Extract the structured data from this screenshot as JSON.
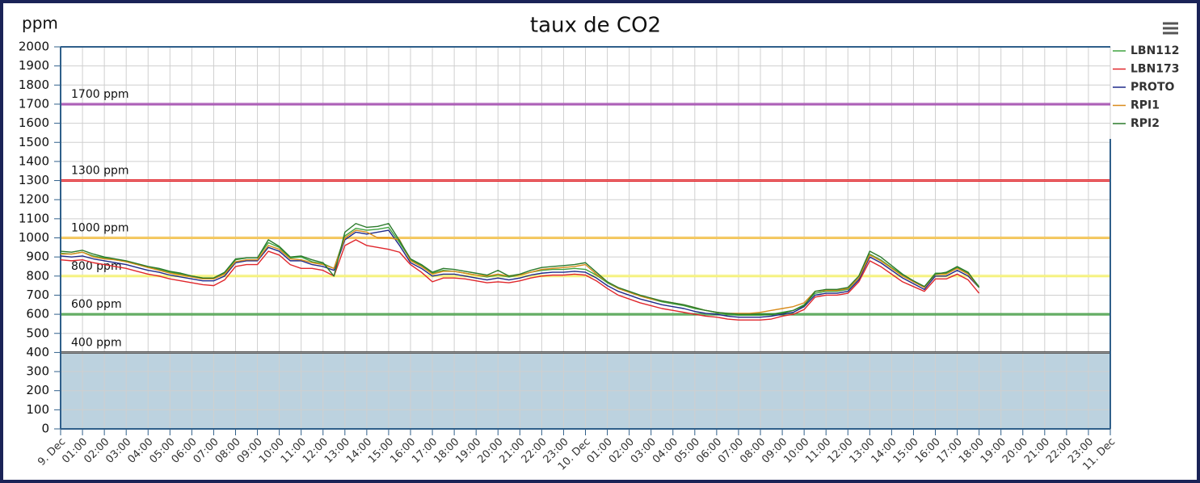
{
  "chart_data": {
    "type": "line",
    "title": "taux de CO2",
    "y_label": "ppm",
    "grid": true,
    "legend": "right",
    "xlim": [
      0,
      48
    ],
    "ylim": [
      0,
      2000
    ],
    "yticks": [
      0,
      100,
      200,
      300,
      400,
      500,
      600,
      700,
      800,
      900,
      1000,
      1100,
      1200,
      1300,
      1400,
      1500,
      1600,
      1700,
      1800,
      1900,
      2000
    ],
    "xticks": [
      {
        "value": 0,
        "label": "9. Dec"
      },
      {
        "value": 1,
        "label": "01:00"
      },
      {
        "value": 2,
        "label": "02:00"
      },
      {
        "value": 3,
        "label": "03:00"
      },
      {
        "value": 4,
        "label": "04:00"
      },
      {
        "value": 5,
        "label": "05:00"
      },
      {
        "value": 6,
        "label": "06:00"
      },
      {
        "value": 7,
        "label": "07:00"
      },
      {
        "value": 8,
        "label": "08:00"
      },
      {
        "value": 9,
        "label": "09:00"
      },
      {
        "value": 10,
        "label": "10:00"
      },
      {
        "value": 11,
        "label": "11:00"
      },
      {
        "value": 12,
        "label": "12:00"
      },
      {
        "value": 13,
        "label": "13:00"
      },
      {
        "value": 14,
        "label": "14:00"
      },
      {
        "value": 15,
        "label": "15:00"
      },
      {
        "value": 16,
        "label": "16:00"
      },
      {
        "value": 17,
        "label": "17:00"
      },
      {
        "value": 18,
        "label": "18:00"
      },
      {
        "value": 19,
        "label": "19:00"
      },
      {
        "value": 20,
        "label": "20:00"
      },
      {
        "value": 21,
        "label": "21:00"
      },
      {
        "value": 22,
        "label": "22:00"
      },
      {
        "value": 23,
        "label": "23:00"
      },
      {
        "value": 24,
        "label": "10. Dec"
      },
      {
        "value": 25,
        "label": "01:00"
      },
      {
        "value": 26,
        "label": "02:00"
      },
      {
        "value": 27,
        "label": "03:00"
      },
      {
        "value": 28,
        "label": "04:00"
      },
      {
        "value": 29,
        "label": "05:00"
      },
      {
        "value": 30,
        "label": "06:00"
      },
      {
        "value": 31,
        "label": "07:00"
      },
      {
        "value": 32,
        "label": "08:00"
      },
      {
        "value": 33,
        "label": "09:00"
      },
      {
        "value": 34,
        "label": "10:00"
      },
      {
        "value": 35,
        "label": "11:00"
      },
      {
        "value": 36,
        "label": "12:00"
      },
      {
        "value": 37,
        "label": "13:00"
      },
      {
        "value": 38,
        "label": "14:00"
      },
      {
        "value": 39,
        "label": "15:00"
      },
      {
        "value": 40,
        "label": "16:00"
      },
      {
        "value": 41,
        "label": "17:00"
      },
      {
        "value": 42,
        "label": "18:00"
      },
      {
        "value": 43,
        "label": "19:00"
      },
      {
        "value": 44,
        "label": "20:00"
      },
      {
        "value": 45,
        "label": "21:00"
      },
      {
        "value": 46,
        "label": "22:00"
      },
      {
        "value": 47,
        "label": "23:00"
      },
      {
        "value": 48,
        "label": "11. Dec"
      }
    ],
    "bands": [
      {
        "from": 0,
        "to": 400,
        "color": "#bcd2df"
      }
    ],
    "reference_lines": [
      {
        "value": 1700,
        "label": "1700 ppm",
        "color": "#9b3fa8"
      },
      {
        "value": 1300,
        "label": "1300 ppm",
        "color": "#e0262b"
      },
      {
        "value": 1000,
        "label": "1000 ppm",
        "color": "#f2c04a"
      },
      {
        "value": 800,
        "label": "800 ppm",
        "color": "#f4f06a"
      },
      {
        "value": 600,
        "label": "600 ppm",
        "color": "#3e9a3e"
      },
      {
        "value": 400,
        "label": "400 ppm",
        "color": "#555555"
      }
    ],
    "x": [
      0,
      0.5,
      1,
      1.5,
      2,
      2.5,
      3,
      3.5,
      4,
      4.5,
      5,
      5.5,
      6,
      6.5,
      7,
      7.5,
      8,
      8.5,
      9,
      9.5,
      10,
      10.5,
      11,
      11.5,
      12,
      12.5,
      13,
      13.5,
      14,
      14.5,
      15,
      15.5,
      16,
      16.5,
      17,
      17.5,
      18,
      18.5,
      19,
      19.5,
      20,
      20.5,
      21,
      21.5,
      22,
      22.5,
      23,
      23.5,
      24,
      24.5,
      25,
      25.5,
      26,
      26.5,
      27,
      27.5,
      28,
      28.5,
      29,
      29.5,
      30,
      30.5,
      31,
      31.5,
      32,
      32.5,
      33,
      33.5,
      34,
      34.5,
      35,
      35.5,
      36,
      36.5,
      37,
      37.5,
      38,
      38.5,
      39,
      39.5,
      40,
      40.5,
      41,
      41.5,
      42
    ],
    "series": [
      {
        "name": "LBN112",
        "color": "#3fa33f",
        "values": [
          920,
          915,
          925,
          905,
          895,
          885,
          875,
          860,
          845,
          835,
          820,
          810,
          800,
          790,
          790,
          815,
          885,
          895,
          895,
          975,
          950,
          895,
          900,
          875,
          865,
          840,
          1010,
          1050,
          1040,
          1045,
          1055,
          975,
          885,
          855,
          815,
          830,
          825,
          815,
          805,
          795,
          805,
          795,
          805,
          820,
          830,
          835,
          835,
          840,
          835,
          805,
          765,
          735,
          715,
          695,
          680,
          665,
          655,
          645,
          630,
          620,
          610,
          600,
          595,
          595,
          595,
          600,
          610,
          620,
          650,
          710,
          720,
          720,
          730,
          790,
          915,
          885,
          845,
          805,
          775,
          745,
          815,
          815,
          845,
          815,
          745
        ]
      },
      {
        "name": "LBN173",
        "color": "#e0262b",
        "values": [
          885,
          880,
          885,
          870,
          860,
          850,
          840,
          825,
          810,
          800,
          785,
          775,
          765,
          755,
          750,
          780,
          850,
          860,
          860,
          930,
          910,
          860,
          840,
          840,
          830,
          800,
          960,
          990,
          960,
          950,
          940,
          925,
          860,
          820,
          770,
          790,
          790,
          785,
          775,
          765,
          770,
          765,
          775,
          790,
          800,
          805,
          805,
          810,
          805,
          775,
          735,
          700,
          680,
          660,
          645,
          630,
          620,
          610,
          600,
          590,
          585,
          575,
          570,
          570,
          570,
          575,
          590,
          600,
          625,
          690,
          700,
          700,
          710,
          770,
          880,
          850,
          810,
          770,
          745,
          720,
          785,
          785,
          810,
          780,
          710
        ]
      },
      {
        "name": "PROTO",
        "color": "#1f2a8a",
        "values": [
          905,
          900,
          905,
          890,
          880,
          870,
          860,
          845,
          830,
          820,
          805,
          795,
          785,
          775,
          775,
          800,
          870,
          880,
          880,
          950,
          930,
          880,
          880,
          860,
          850,
          830,
          990,
          1030,
          1020,
          1030,
          1040,
          960,
          870,
          840,
          800,
          810,
          810,
          800,
          790,
          780,
          790,
          780,
          790,
          805,
          815,
          820,
          820,
          825,
          820,
          790,
          750,
          720,
          700,
          680,
          665,
          650,
          640,
          630,
          615,
          605,
          600,
          590,
          585,
          585,
          585,
          590,
          600,
          610,
          640,
          700,
          710,
          710,
          720,
          780,
          900,
          870,
          830,
          790,
          760,
          730,
          800,
          800,
          830,
          800,
          740
        ]
      },
      {
        "name": "RPI1",
        "color": "#d98c1c",
        "values": [
          915,
          915,
          925,
          900,
          890,
          885,
          875,
          860,
          845,
          830,
          815,
          805,
          795,
          785,
          785,
          810,
          875,
          885,
          885,
          960,
          940,
          890,
          885,
          870,
          860,
          840,
          1000,
          1040,
          1030,
          1000,
          1000,
          990,
          880,
          850,
          810,
          825,
          825,
          815,
          805,
          800,
          810,
          800,
          805,
          820,
          835,
          840,
          845,
          850,
          860,
          810,
          770,
          735,
          715,
          695,
          680,
          670,
          660,
          650,
          635,
          620,
          610,
          605,
          605,
          605,
          610,
          620,
          630,
          640,
          660,
          720,
          725,
          725,
          735,
          790,
          910,
          880,
          840,
          800,
          770,
          740,
          810,
          810,
          840,
          810,
          740
        ]
      },
      {
        "name": "RPI2",
        "color": "#2b7a2b",
        "values": [
          930,
          925,
          935,
          915,
          900,
          890,
          880,
          865,
          850,
          840,
          825,
          815,
          800,
          790,
          790,
          820,
          890,
          895,
          895,
          990,
          955,
          900,
          905,
          885,
          870,
          800,
          1030,
          1075,
          1055,
          1060,
          1075,
          985,
          890,
          860,
          820,
          840,
          835,
          825,
          815,
          805,
          830,
          800,
          810,
          830,
          845,
          850,
          855,
          860,
          870,
          820,
          770,
          740,
          720,
          700,
          685,
          670,
          660,
          650,
          635,
          620,
          610,
          605,
          600,
          600,
          600,
          600,
          605,
          620,
          645,
          720,
          730,
          730,
          740,
          800,
          930,
          900,
          855,
          810,
          775,
          745,
          810,
          820,
          850,
          820,
          740
        ]
      }
    ]
  }
}
